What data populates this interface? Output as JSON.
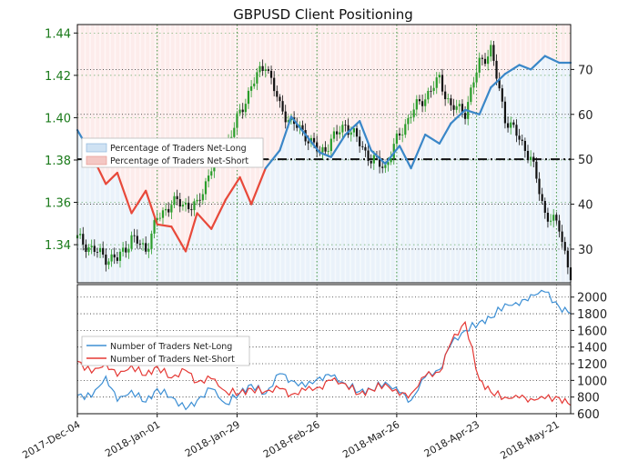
{
  "chart_data": [
    {
      "type": "candlestick+line",
      "title": "GBPUSD Client Positioning",
      "y_left": {
        "ylim": [
          1.322,
          1.444
        ],
        "ticks": [
          "1.44",
          "1.42",
          "1.40",
          "1.38",
          "1.36",
          "1.34"
        ]
      },
      "y_right": {
        "ylim": [
          22.5,
          80
        ],
        "ticks": [
          "70",
          "60",
          "50",
          "40",
          "30"
        ]
      },
      "reference_line": 50,
      "legend": [
        {
          "name": "Percentage of Traders Net-Long",
          "color": "#cfe2f3"
        },
        {
          "name": "Percentage of Traders Net-Short",
          "color": "#f4c7c3"
        }
      ],
      "price_series": {
        "x": [
          0,
          5,
          10,
          14,
          19,
          24,
          28,
          33,
          38,
          42,
          47,
          52,
          57,
          61,
          66,
          71,
          75,
          80,
          85,
          89,
          94,
          99,
          103,
          108,
          113,
          117,
          122,
          127,
          131,
          136,
          141,
          145,
          150,
          155,
          159,
          164,
          169,
          173
        ],
        "values": [
          1.343,
          1.338,
          1.334,
          1.333,
          1.343,
          1.338,
          1.352,
          1.36,
          1.359,
          1.358,
          1.377,
          1.386,
          1.402,
          1.415,
          1.426,
          1.405,
          1.398,
          1.392,
          1.383,
          1.389,
          1.397,
          1.388,
          1.38,
          1.377,
          1.392,
          1.402,
          1.41,
          1.418,
          1.405,
          1.403,
          1.426,
          1.432,
          1.4,
          1.39,
          1.381,
          1.355,
          1.348,
          1.325
        ]
      },
      "net_long_pct_series": {
        "x": [
          0,
          5,
          10,
          14,
          19,
          24,
          28,
          33,
          38,
          42,
          47,
          52,
          57,
          61,
          66,
          71,
          75,
          80,
          85,
          89,
          94,
          99,
          103,
          108,
          113,
          117,
          122,
          127,
          131,
          136,
          141,
          145,
          150,
          155,
          159,
          164,
          169,
          173
        ],
        "values": [
          56.5,
          51.0,
          44.5,
          47.0,
          38.0,
          43.0,
          35.5,
          35.0,
          29.5,
          38.0,
          34.5,
          41.0,
          46.0,
          40.0,
          48.0,
          52.0,
          59.5,
          55.5,
          51.5,
          50.5,
          55.5,
          58.5,
          52.0,
          49.0,
          53.0,
          48.0,
          55.5,
          53.5,
          58.0,
          61.0,
          60.0,
          66.0,
          69.0,
          71.0,
          70.0,
          73.0,
          71.5,
          71.5
        ]
      }
    },
    {
      "type": "line",
      "y_right": {
        "ylim": [
          600,
          2150
        ],
        "ticks": [
          "2000",
          "1800",
          "1600",
          "1400",
          "1200",
          "1000",
          "800",
          "600"
        ]
      },
      "series": [
        {
          "name": "Number of Traders Net-Long",
          "color": "#3d8fd4",
          "x": [
            0,
            5,
            10,
            14,
            19,
            24,
            28,
            33,
            38,
            42,
            47,
            52,
            57,
            61,
            66,
            71,
            75,
            80,
            85,
            89,
            94,
            99,
            103,
            108,
            113,
            117,
            122,
            127,
            131,
            136,
            141,
            145,
            150,
            155,
            159,
            164,
            169,
            173
          ],
          "values": [
            820,
            800,
            1050,
            750,
            880,
            740,
            900,
            800,
            650,
            760,
            900,
            720,
            850,
            950,
            840,
            1080,
            1000,
            920,
            1040,
            1050,
            960,
            870,
            890,
            980,
            850,
            760,
            1040,
            1130,
            1430,
            1600,
            1700,
            1750,
            1920,
            1900,
            2030,
            2060,
            1880,
            1800
          ]
        },
        {
          "name": "Number of Traders Net-Short",
          "color": "#e53935",
          "x": [
            0,
            5,
            10,
            14,
            19,
            24,
            28,
            33,
            38,
            42,
            47,
            52,
            57,
            61,
            66,
            71,
            75,
            80,
            85,
            89,
            94,
            99,
            103,
            108,
            113,
            117,
            122,
            127,
            131,
            136,
            141,
            145,
            150,
            155,
            159,
            164,
            169,
            173
          ],
          "values": [
            1230,
            1090,
            1210,
            1050,
            1180,
            1060,
            1170,
            1030,
            1120,
            980,
            1020,
            870,
            850,
            900,
            870,
            900,
            830,
            880,
            920,
            1000,
            960,
            840,
            890,
            960,
            820,
            840,
            1050,
            1100,
            1450,
            1700,
            1010,
            860,
            800,
            790,
            780,
            780,
            790,
            700
          ]
        }
      ]
    }
  ],
  "x_axis": {
    "ticks": [
      {
        "x": 0,
        "label": "2017-Dec-04"
      },
      {
        "x": 28,
        "label": "2018-Jan-01"
      },
      {
        "x": 56,
        "label": "2018-Jan-29"
      },
      {
        "x": 84,
        "label": "2018-Feb-26"
      },
      {
        "x": 112,
        "label": "2018-Mar-26"
      },
      {
        "x": 140,
        "label": "2018-Apr-23"
      },
      {
        "x": 168,
        "label": "2018-May-21"
      }
    ],
    "range": [
      0,
      173
    ]
  }
}
